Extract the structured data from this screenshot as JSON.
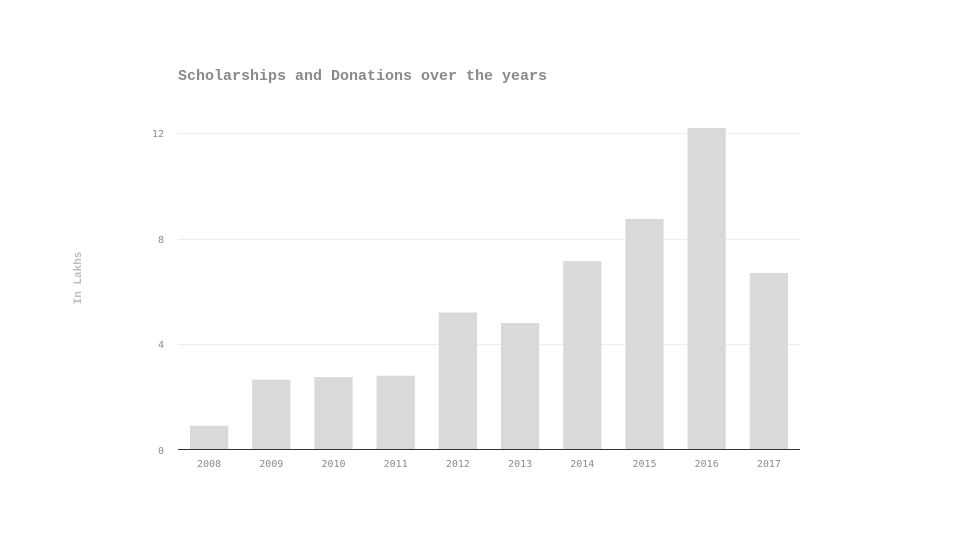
{
  "chart_data": {
    "type": "bar",
    "title": "Scholarships and Donations over the years",
    "xlabel": "",
    "ylabel": "In Lakhs",
    "categories": [
      "2008",
      "2009",
      "2010",
      "2011",
      "2012",
      "2013",
      "2014",
      "2015",
      "2016",
      "2017"
    ],
    "values": [
      0.9,
      2.65,
      2.75,
      2.8,
      5.2,
      4.8,
      7.15,
      8.75,
      12.2,
      6.7
    ],
    "ylim": [
      0,
      12.2
    ],
    "yticks": [
      0,
      4,
      8,
      12
    ],
    "grid": true,
    "legend": "none",
    "colors": {
      "bar": "#d9d9d9",
      "grid": "#eeeeee",
      "axis": "#333333",
      "title": "#8a8a8a",
      "tick_text": "#8c8c8c",
      "ylabel": "#bdbdbd"
    }
  }
}
